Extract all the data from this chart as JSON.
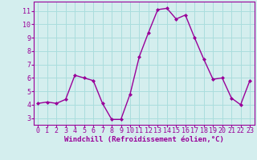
{
  "x": [
    0,
    1,
    2,
    3,
    4,
    5,
    6,
    7,
    8,
    9,
    10,
    11,
    12,
    13,
    14,
    15,
    16,
    17,
    18,
    19,
    20,
    21,
    22,
    23
  ],
  "y": [
    4.1,
    4.2,
    4.1,
    4.4,
    6.2,
    6.0,
    5.8,
    4.1,
    2.9,
    2.9,
    4.8,
    7.6,
    9.4,
    11.1,
    11.2,
    10.4,
    10.7,
    9.0,
    7.4,
    5.9,
    6.0,
    4.5,
    4.0,
    5.8
  ],
  "line_color": "#990099",
  "marker": "D",
  "marker_size": 2.0,
  "bg_color": "#d4eeee",
  "grid_color": "#aadddd",
  "xlabel": "Windchill (Refroidissement éolien,°C)",
  "xlabel_color": "#990099",
  "xlabel_fontsize": 6.5,
  "xtick_labels": [
    "0",
    "1",
    "2",
    "3",
    "4",
    "5",
    "6",
    "7",
    "8",
    "9",
    "10",
    "11",
    "12",
    "13",
    "14",
    "15",
    "16",
    "17",
    "18",
    "19",
    "20",
    "21",
    "22",
    "23"
  ],
  "ytick_labels": [
    "3",
    "4",
    "5",
    "6",
    "7",
    "8",
    "9",
    "10",
    "11"
  ],
  "ylim": [
    2.5,
    11.7
  ],
  "xlim": [
    -0.5,
    23.5
  ],
  "tick_color": "#990099",
  "tick_fontsize": 6.0,
  "border_color": "#990099",
  "line_width": 1.0
}
